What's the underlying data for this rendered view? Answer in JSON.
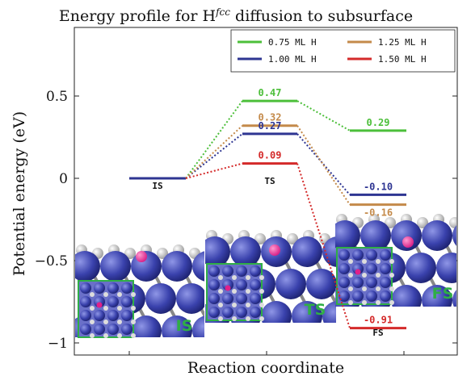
{
  "chart_data": {
    "type": "line",
    "title": "Energy profile for H",
    "title_superscript": "fcc",
    "title_suffix": " diffusion to subsurface",
    "xlabel": "Reaction coordinate",
    "ylabel": "Potential energy (eV)",
    "ylim": [
      -1.1,
      0.7
    ],
    "yticks": [
      -1,
      -0.5,
      0,
      0.5
    ],
    "ytick_labels": [
      "−1",
      "−0.5",
      "0",
      "0.5"
    ],
    "grid": false,
    "legend_position": "top-right",
    "categories": [
      "IS",
      "TS",
      "FS"
    ],
    "series": [
      {
        "name": "0.75 ML H",
        "color": "#4cbf3a",
        "values": [
          0,
          0.47,
          0.29
        ],
        "labels": [
          "",
          "0.47",
          "0.29"
        ]
      },
      {
        "name": "1.00 ML H",
        "color": "#2e3592",
        "values": [
          0,
          0.27,
          -0.1
        ],
        "labels": [
          "",
          "0.27",
          "-0.10"
        ]
      },
      {
        "name": "1.25 ML H",
        "color": "#c48a4a",
        "values": [
          0,
          0.32,
          -0.16
        ],
        "labels": [
          "",
          "0.32",
          "-0.16"
        ]
      },
      {
        "name": "1.50 ML H",
        "color": "#d42a2a",
        "values": [
          0,
          0.09,
          -0.91
        ],
        "labels": [
          "",
          "0.09",
          "-0.91"
        ]
      }
    ],
    "legend_order": [
      0,
      2,
      1,
      3
    ],
    "state_labels": [
      "IS",
      "TS",
      "FS"
    ],
    "insets": [
      {
        "label": "IS"
      },
      {
        "label": "TS"
      },
      {
        "label": "FS"
      }
    ]
  }
}
